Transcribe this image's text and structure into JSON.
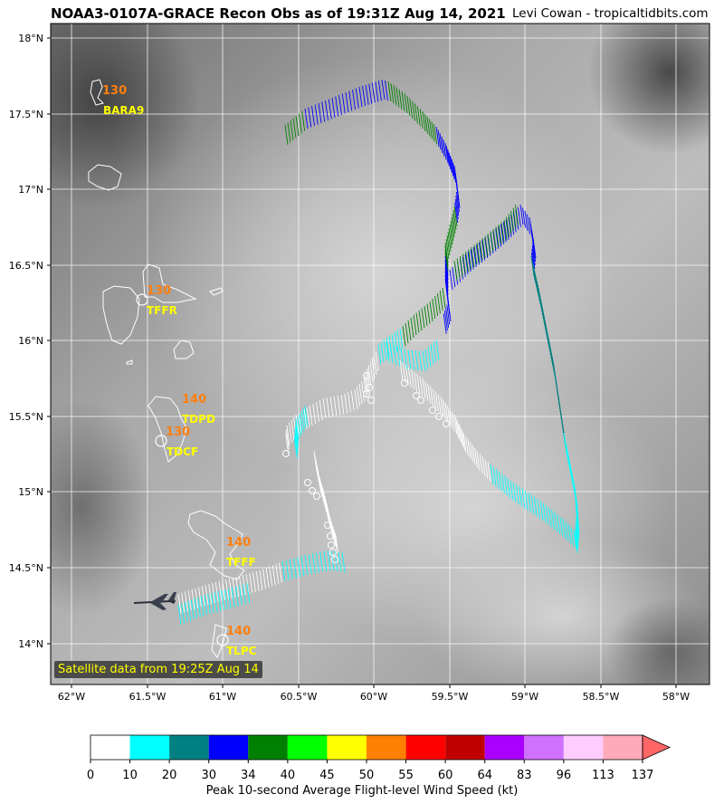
{
  "header": {
    "title": "NOAA3-0107A-GRACE Recon Obs as of 19:31Z Aug 14, 2021",
    "credit": "Levi Cowan - tropicaltidbits.com"
  },
  "map": {
    "lon_labels": [
      "62°W",
      "61.5°W",
      "61°W",
      "60.5°W",
      "60°W",
      "59.5°W",
      "59°W",
      "58.5°W",
      "58°W"
    ],
    "lat_labels": [
      "18°N",
      "17.5°N",
      "17°N",
      "16.5°N",
      "16°N",
      "15.5°N",
      "15°N",
      "14.5°N",
      "14°N"
    ],
    "satellite_note": "Satellite data from 19:25Z Aug 14",
    "stations": [
      {
        "id": "BARA9",
        "speed": "130"
      },
      {
        "id": "TFFR",
        "speed": "130"
      },
      {
        "id": "TDPD",
        "speed": "140"
      },
      {
        "id": "TDCF",
        "speed": "130"
      },
      {
        "id": "TFFF",
        "speed": "140"
      },
      {
        "id": "TLPC",
        "speed": "140"
      }
    ]
  },
  "colorbar": {
    "label": "Peak 10-second Average Flight-level Wind Speed (kt)",
    "ticks": [
      "0",
      "10",
      "20",
      "30",
      "34",
      "40",
      "45",
      "50",
      "55",
      "60",
      "64",
      "83",
      "96",
      "113",
      "137"
    ],
    "colors": [
      "#ffffff",
      "#00ffff",
      "#008080",
      "#0000ff",
      "#008000",
      "#00ff00",
      "#ffff00",
      "#ff8000",
      "#ff0000",
      "#c00000",
      "#aa00ff",
      "#d070ff",
      "#ffccff",
      "#ffaabb"
    ],
    "extend_color": "#ff6666"
  }
}
